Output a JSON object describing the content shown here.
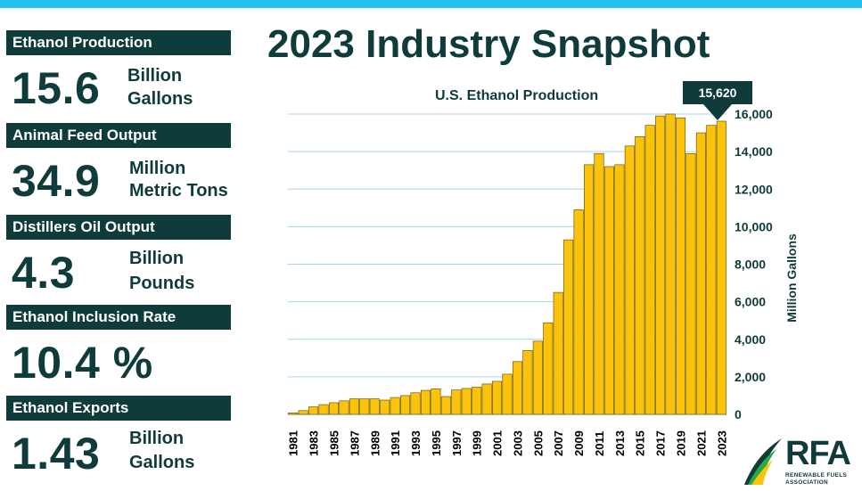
{
  "stats": [
    {
      "label": "Ethanol Production",
      "value": "15.6",
      "unit_line1": "Billion",
      "unit_line2": "Gallons"
    },
    {
      "label": "Animal Feed Output",
      "value": "34.9",
      "unit_line1": "Million",
      "unit_line2": "Metric Tons"
    },
    {
      "label": "Distillers Oil Output",
      "value": "4.3",
      "unit_line1": "Billion",
      "unit_line2": "Pounds"
    },
    {
      "label": "Ethanol Inclusion Rate",
      "value": "10.4 %",
      "unit_line1": "",
      "unit_line2": ""
    },
    {
      "label": "Ethanol Exports",
      "value": "1.43",
      "unit_line1": "Billion",
      "unit_line2": "Gallons"
    }
  ],
  "main_title": "2023 Industry Snapshot",
  "callout": "15,620",
  "logo": {
    "letters": "RFA",
    "line1": "RENEWABLE FUELS",
    "line2": "ASSOCIATION"
  },
  "colors": {
    "bar": "#fcc30b",
    "bar_edge": "#5a4500",
    "dark": "#0f3b3a",
    "accent": "#22c3f0",
    "grid": "#a9d4e6"
  },
  "chart_data": {
    "type": "bar",
    "title": "U.S. Ethanol Production",
    "ylabel": "Million Gallons",
    "xlabel": "",
    "ylim": [
      0,
      16000
    ],
    "yticks": [
      0,
      2000,
      4000,
      6000,
      8000,
      10000,
      12000,
      14000,
      16000
    ],
    "ytick_labels": [
      "0",
      "2,000",
      "4,000",
      "6,000",
      "8,000",
      "10,000",
      "12,000",
      "14,000",
      "16,000"
    ],
    "grid": true,
    "categories": [
      "1981",
      "1982",
      "1983",
      "1984",
      "1985",
      "1986",
      "1987",
      "1988",
      "1989",
      "1990",
      "1991",
      "1992",
      "1993",
      "1994",
      "1995",
      "1996",
      "1997",
      "1998",
      "1999",
      "2000",
      "2001",
      "2002",
      "2003",
      "2004",
      "2005",
      "2006",
      "2007",
      "2008",
      "2009",
      "2010",
      "2011",
      "2012",
      "2013",
      "2014",
      "2015",
      "2016",
      "2017",
      "2018",
      "2019",
      "2020",
      "2021",
      "2022",
      "2023"
    ],
    "xtick_labels": [
      "1981",
      "1983",
      "1985",
      "1987",
      "1989",
      "1991",
      "1993",
      "1995",
      "1997",
      "1999",
      "2001",
      "2003",
      "2005",
      "2007",
      "2009",
      "2011",
      "2013",
      "2015",
      "2017",
      "2019",
      "2021",
      "2023"
    ],
    "values": [
      80,
      200,
      400,
      520,
      620,
      720,
      830,
      830,
      830,
      760,
      900,
      1000,
      1150,
      1280,
      1360,
      950,
      1300,
      1380,
      1450,
      1620,
      1760,
      2140,
      2810,
      3400,
      3900,
      4880,
      6500,
      9300,
      10900,
      13300,
      13900,
      13200,
      13300,
      14300,
      14800,
      15400,
      15900,
      16000,
      15800,
      13900,
      15000,
      15400,
      15620
    ],
    "annotation": "15,620"
  }
}
